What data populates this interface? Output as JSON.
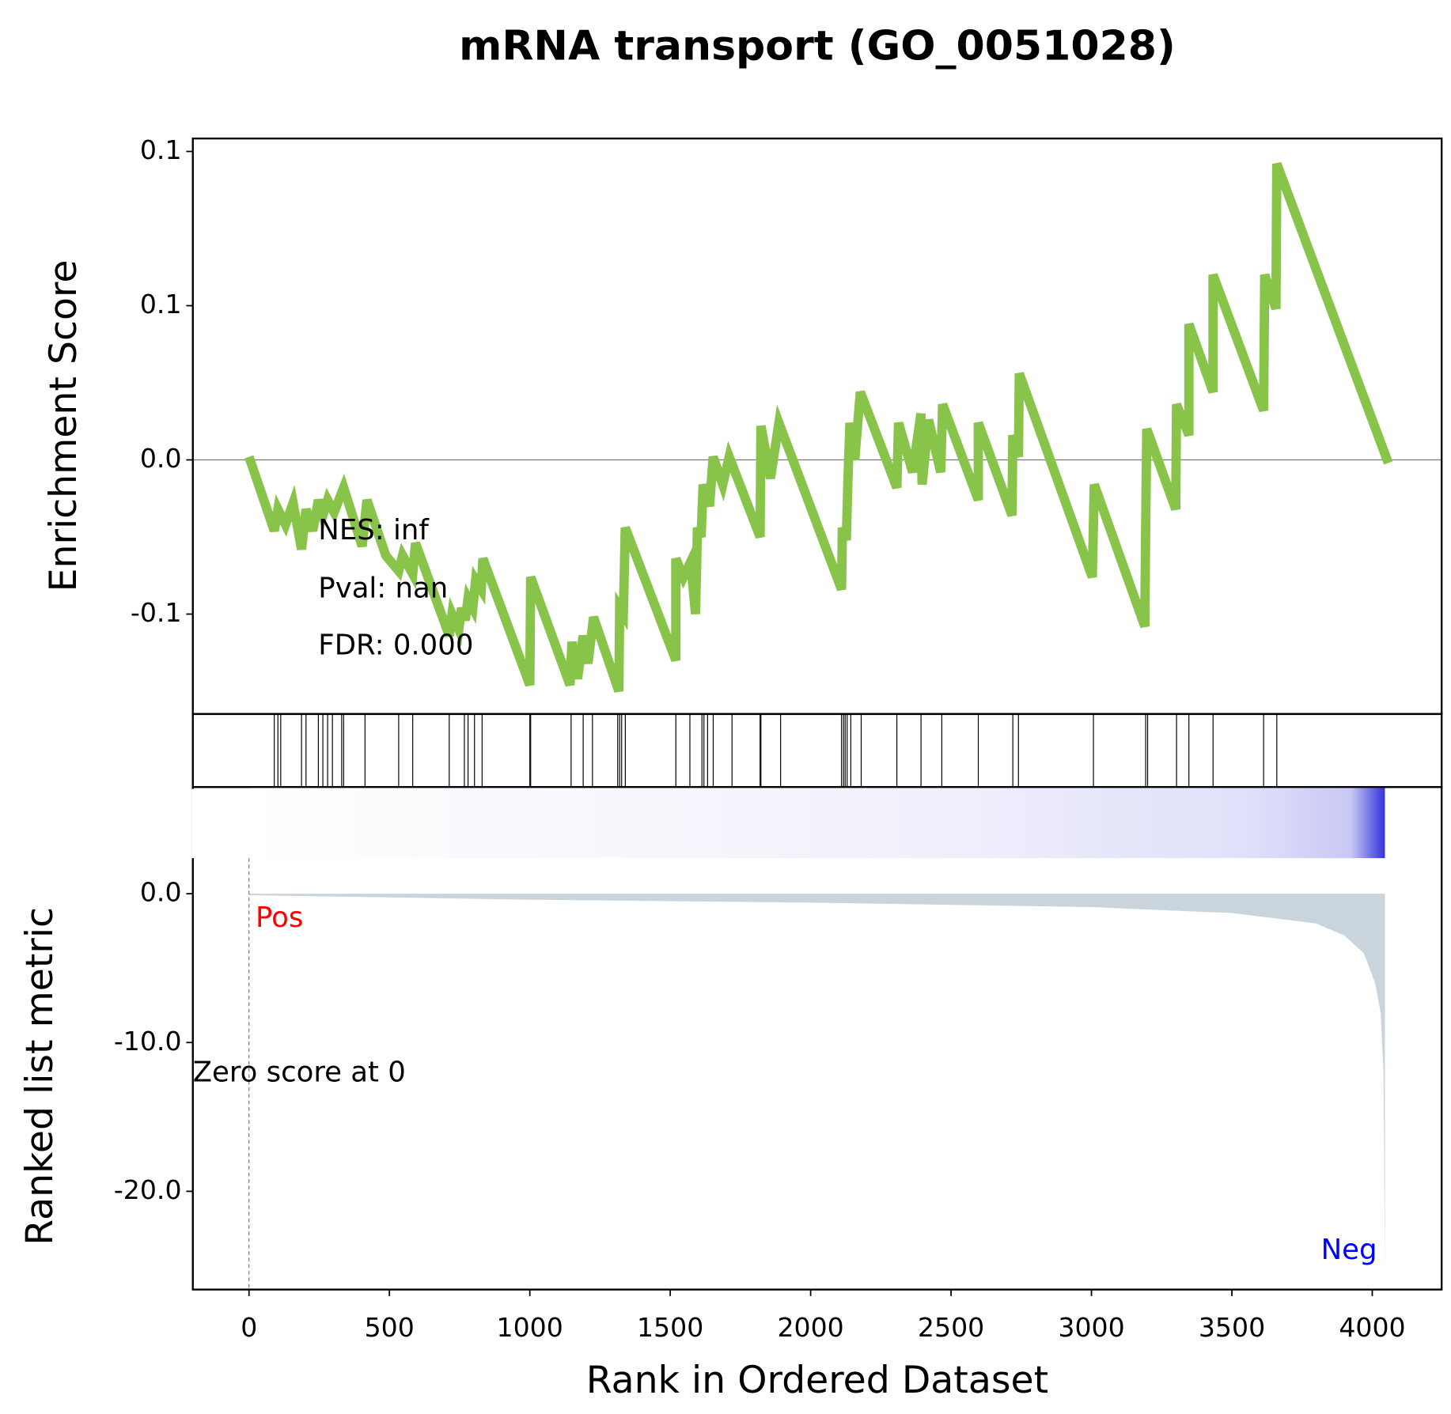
{
  "chart_data": [
    {
      "type": "line",
      "title": "mRNA transport (GO_0051028)",
      "ylabel": "Enrichment Score",
      "color": "#88c34a",
      "xlim": [
        -200,
        4247
      ],
      "ylim": [
        -0.0824,
        0.1042
      ],
      "yticks": [
        0.1,
        {
          "value": 0.05,
          "label": "0.1"
        },
        {
          "value": 0,
          "label": "0.0"
        },
        {
          "value": -0.05,
          "label": "-0.1"
        }
      ],
      "x": [
        0,
        90,
        103,
        130,
        157,
        187,
        203,
        227,
        247,
        263,
        280,
        303,
        337,
        403,
        420,
        487,
        533,
        547,
        583,
        593,
        713,
        723,
        747,
        757,
        770,
        780,
        797,
        807,
        827,
        833,
        1000,
        1003,
        1143,
        1150,
        1170,
        1190,
        1207,
        1227,
        1317,
        1320,
        1333,
        1340,
        1520,
        1520,
        1547,
        1573,
        1590,
        1597,
        1610,
        1617,
        1640,
        1653,
        1687,
        1710,
        1820,
        1823,
        1857,
        1887,
        2110,
        2113,
        2127,
        2133,
        2140,
        2157,
        2177,
        2307,
        2313,
        2363,
        2393,
        2397,
        2420,
        2463,
        2470,
        2597,
        2597,
        2717,
        2720,
        2740,
        2743,
        3003,
        3010,
        3190,
        3193,
        3197,
        3300,
        3303,
        3347,
        3347,
        3433,
        3433,
        3613,
        3617,
        3657,
        3660,
        4057
      ],
      "values": [
        0.001,
        -0.023,
        -0.016,
        -0.021,
        -0.014,
        -0.029,
        -0.016,
        -0.023,
        -0.013,
        -0.018,
        -0.013,
        -0.017,
        -0.009,
        -0.028,
        -0.013,
        -0.031,
        -0.036,
        -0.031,
        -0.037,
        -0.027,
        -0.057,
        -0.05,
        -0.055,
        -0.048,
        -0.052,
        -0.045,
        -0.048,
        -0.039,
        -0.042,
        -0.032,
        -0.073,
        -0.038,
        -0.073,
        -0.059,
        -0.071,
        -0.057,
        -0.066,
        -0.051,
        -0.075,
        -0.048,
        -0.05,
        -0.022,
        -0.065,
        -0.032,
        -0.038,
        -0.033,
        -0.05,
        -0.022,
        -0.025,
        -0.008,
        -0.015,
        0.001,
        -0.008,
        0.001,
        -0.025,
        0.011,
        -0.006,
        0.012,
        -0.042,
        -0.022,
        -0.026,
        -0.006,
        0.012,
        0.0,
        0.022,
        -0.009,
        0.012,
        -0.004,
        0.015,
        -0.008,
        0.013,
        -0.004,
        0.018,
        -0.013,
        0.012,
        -0.018,
        0.008,
        0.001,
        0.028,
        -0.038,
        -0.008,
        -0.054,
        -0.022,
        0.01,
        -0.016,
        0.018,
        0.008,
        0.044,
        0.022,
        0.06,
        0.016,
        0.06,
        0.049,
        0.096,
        -0.001
      ],
      "annotations": [
        {
          "text": "NES: inf"
        },
        {
          "text": "Pval: nan"
        },
        {
          "text": "FDR: 0.000"
        }
      ]
    },
    {
      "type": "rug",
      "xlim": [
        -200,
        4247
      ],
      "x": [
        90,
        103,
        113,
        187,
        203,
        247,
        263,
        280,
        297,
        330,
        337,
        413,
        533,
        583,
        713,
        767,
        780,
        803,
        830,
        1000,
        1003,
        1147,
        1190,
        1223,
        1313,
        1320,
        1327,
        1340,
        1520,
        1570,
        1613,
        1620,
        1633,
        1653,
        1720,
        1820,
        1823,
        1893,
        2110,
        2117,
        2123,
        2130,
        2143,
        2180,
        2307,
        2393,
        2467,
        2597,
        2720,
        2740,
        3007,
        3193,
        3200,
        3303,
        3347,
        3433,
        3613,
        3660
      ]
    },
    {
      "type": "area",
      "ylabel": "Ranked list metric",
      "xlabel": "Rank in Ordered Dataset",
      "color": "#c9d4dd",
      "xlim": [
        -200,
        4247
      ],
      "ylim": [
        -26.6,
        7.17
      ],
      "xticks": [
        0,
        500,
        1000,
        1500,
        2000,
        2500,
        3000,
        3500,
        4000
      ],
      "yticks": [
        {
          "value": 0,
          "label": "0.0"
        },
        {
          "value": -10,
          "label": "-10.0"
        },
        {
          "value": -20,
          "label": "-20.0"
        }
      ],
      "x": [
        0,
        1000,
        2000,
        3000,
        3500,
        3800,
        3900,
        3970,
        4010,
        4030,
        4040,
        4045
      ],
      "values": [
        -0.1,
        -0.4,
        -0.6,
        -0.9,
        -1.3,
        -2,
        -2.8,
        -4,
        -6,
        -8,
        -12,
        -25.5
      ],
      "annotations": [
        {
          "text": "Pos",
          "color": "#ff0000"
        },
        {
          "text": "Neg",
          "color": "#0000ff"
        },
        {
          "text": "Zero score at 0",
          "color": "#000000"
        }
      ]
    }
  ]
}
